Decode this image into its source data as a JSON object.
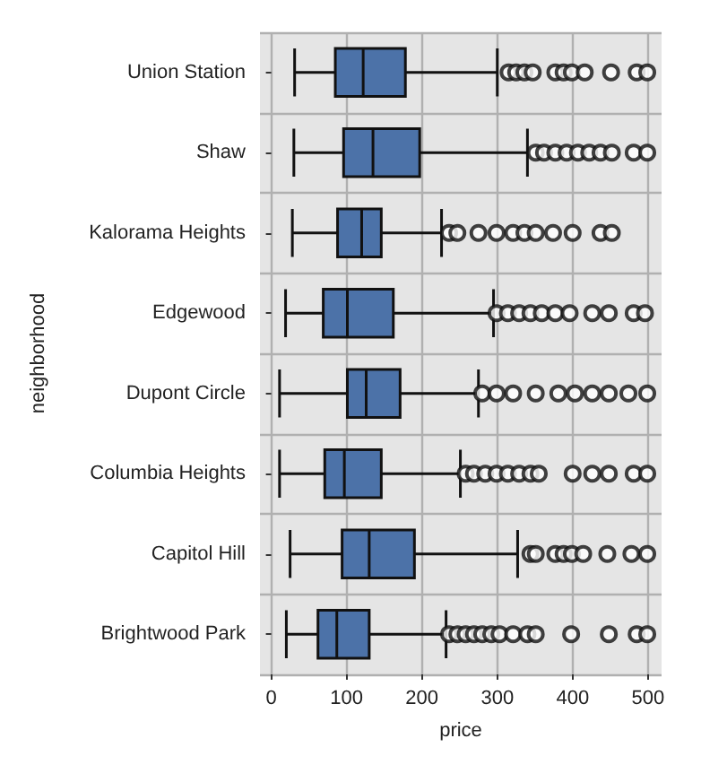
{
  "chart_data": {
    "type": "box",
    "orientation": "horizontal",
    "xlabel": "price",
    "ylabel": "neighborhood",
    "categories": [
      "Union Station",
      "Shaw",
      "Kalorama Heights",
      "Edgewood",
      "Dupont Circle",
      "Columbia Heights",
      "Capitol Hill",
      "Brightwood Park"
    ],
    "color": "#4c72a8",
    "xlim": [
      -15,
      518
    ],
    "xticks": [
      0,
      100,
      200,
      300,
      400,
      500
    ],
    "grid": true,
    "marker": "circle",
    "boxes": [
      {
        "low": 31,
        "q1": 85,
        "median": 122,
        "q3": 178,
        "high": 300,
        "outliers": [
          315,
          325,
          336,
          347,
          377,
          388,
          399,
          416,
          451,
          485,
          499
        ]
      },
      {
        "low": 30,
        "q1": 96,
        "median": 135,
        "q3": 197,
        "high": 340,
        "outliers": [
          351,
          362,
          377,
          392,
          407,
          422,
          437,
          452,
          481,
          499
        ]
      },
      {
        "low": 28,
        "q1": 88,
        "median": 120,
        "q3": 146,
        "high": 226,
        "outliers": [
          236,
          247,
          275,
          299,
          321,
          336,
          351,
          374,
          400,
          437,
          452
        ]
      },
      {
        "low": 19,
        "q1": 69,
        "median": 101,
        "q3": 162,
        "high": 295,
        "outliers": [
          299,
          314,
          329,
          344,
          359,
          377,
          396,
          426,
          448,
          481,
          496
        ]
      },
      {
        "low": 11,
        "q1": 101,
        "median": 126,
        "q3": 171,
        "high": 275,
        "outliers": [
          280,
          299,
          321,
          351,
          381,
          403,
          426,
          448,
          474,
          499
        ]
      },
      {
        "low": 11,
        "q1": 71,
        "median": 97,
        "q3": 146,
        "high": 251,
        "outliers": [
          258,
          269,
          284,
          299,
          314,
          329,
          344,
          355,
          400,
          426,
          448,
          481,
          499
        ]
      },
      {
        "low": 25,
        "q1": 94,
        "median": 130,
        "q3": 190,
        "high": 327,
        "outliers": [
          344,
          351,
          377,
          388,
          399,
          414,
          446,
          478,
          499
        ]
      },
      {
        "low": 20,
        "q1": 62,
        "median": 87,
        "q3": 130,
        "high": 232,
        "outliers": [
          236,
          247,
          258,
          269,
          280,
          292,
          303,
          321,
          340,
          351,
          398,
          448,
          485,
          499
        ]
      }
    ]
  }
}
